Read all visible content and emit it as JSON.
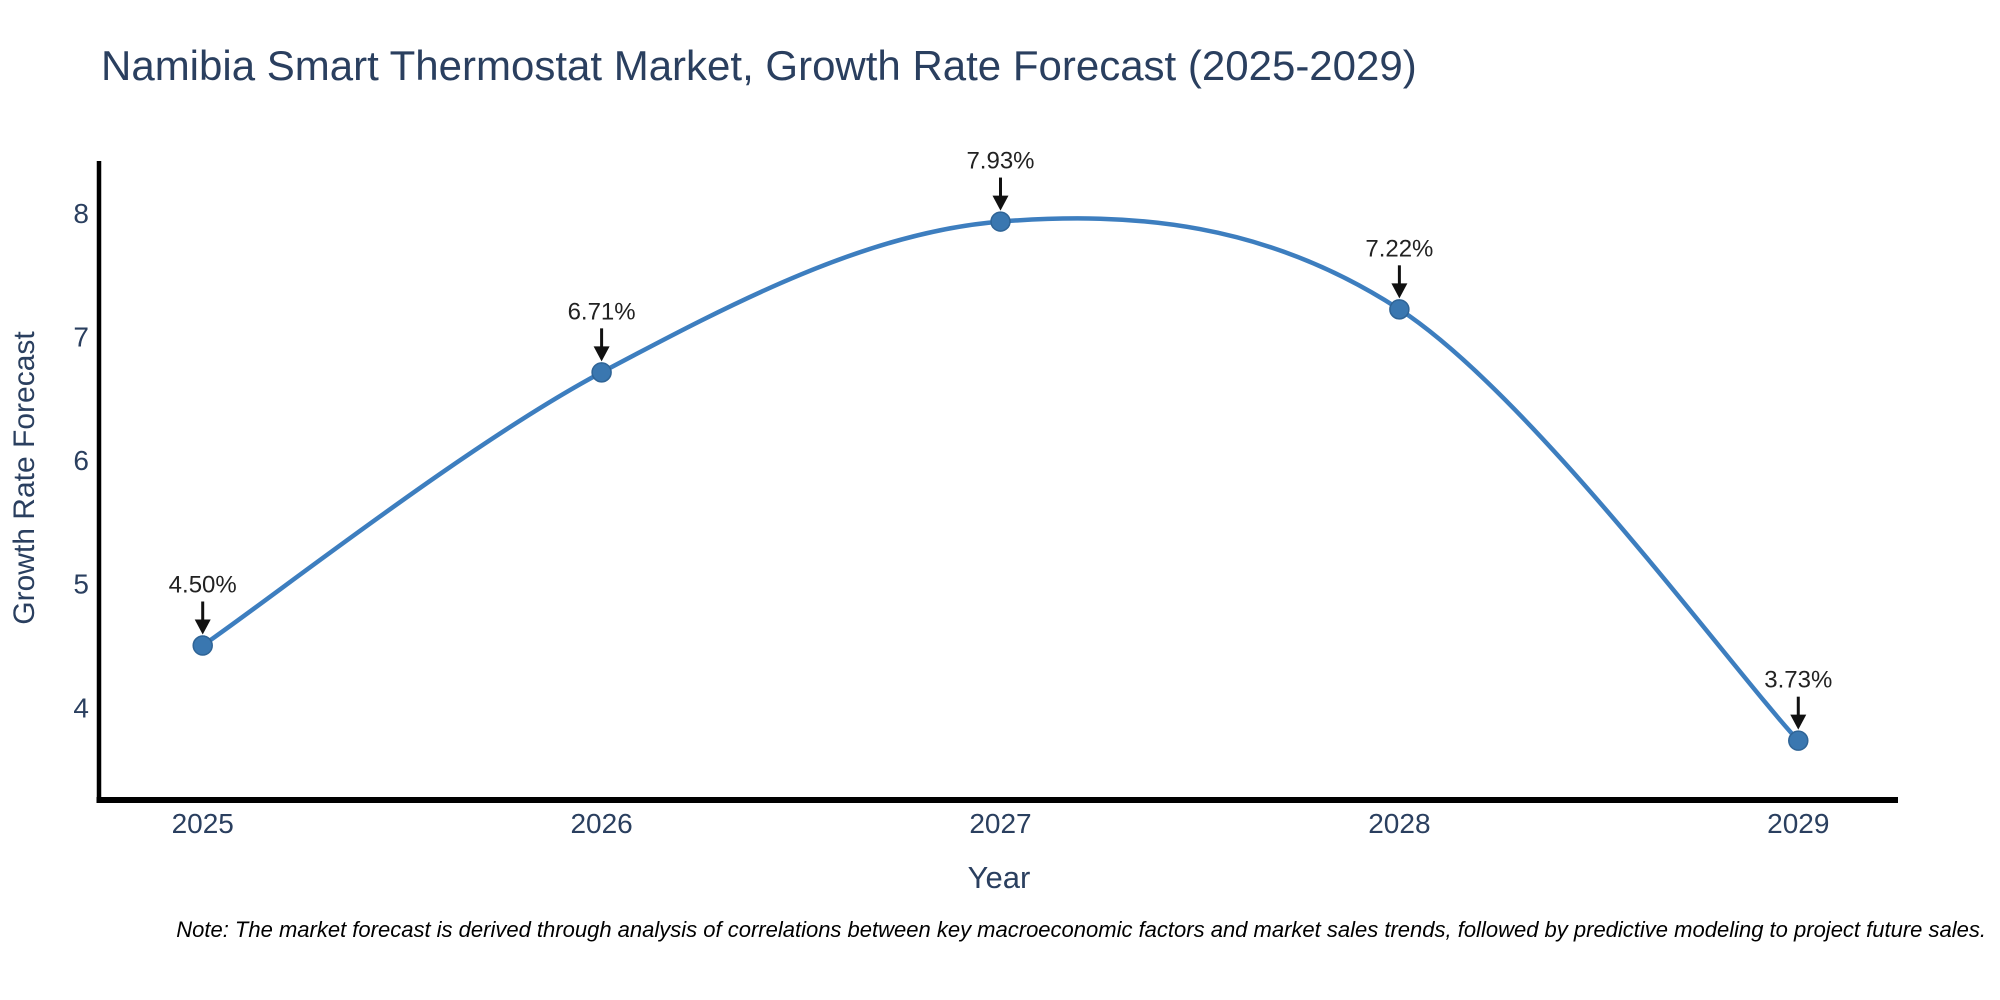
{
  "title": {
    "text": "Namibia Smart Thermostat Market, Growth Rate Forecast (2025-2029)"
  },
  "note": {
    "text": "Note: The market forecast is derived through analysis of correlations between key macroeconomic factors and market sales trends, followed by predictive modeling to project future sales."
  },
  "chart_data": {
    "type": "line",
    "title": "Namibia Smart Thermostat Market, Growth Rate Forecast (2025-2029)",
    "x": [
      2025,
      2026,
      2027,
      2028,
      2029
    ],
    "categories": [
      "2025",
      "2026",
      "2027",
      "2028",
      "2029"
    ],
    "series": [
      {
        "name": "Growth Rate Forecast",
        "values": [
          4.5,
          6.71,
          7.93,
          7.22,
          3.73
        ]
      }
    ],
    "point_labels": [
      "4.50%",
      "6.71%",
      "7.93%",
      "7.22%",
      "3.73%"
    ],
    "xlabel": "Year",
    "ylabel": "Growth Rate Forecast",
    "yticks": [
      4,
      5,
      6,
      7,
      8
    ],
    "xlim": [
      2024.74,
      2029.25
    ],
    "ylim": [
      3.25,
      8.42
    ],
    "line_shape": "spline",
    "grid": false,
    "legend": "none",
    "colors": {
      "line": "#3d7ebf",
      "marker": "#3a77b0",
      "marker_edge": "#2f6496",
      "axis_line": "#000000",
      "tick_text": "#2a3f5f",
      "axis_title_text": "#2a3f5f",
      "title_text": "#2a3f5f",
      "annotation_text": "#222222",
      "arrow": "#111111",
      "note_text": "#000000",
      "background": "#ffffff"
    }
  }
}
